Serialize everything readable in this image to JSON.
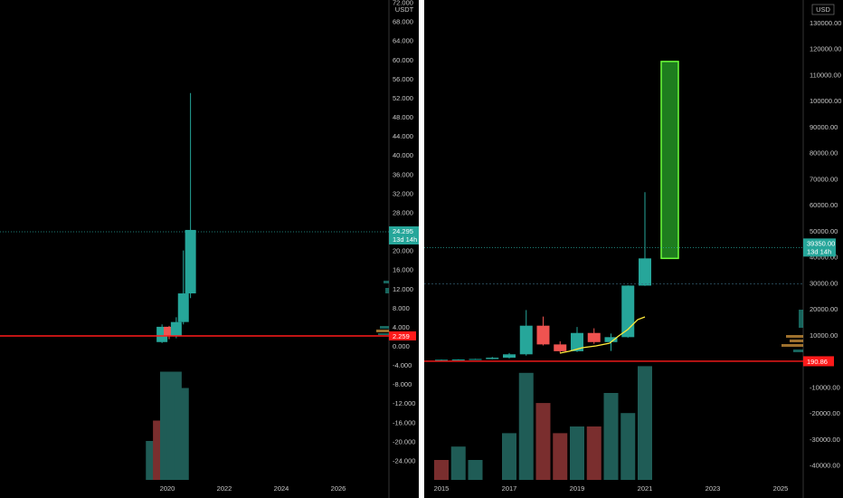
{
  "left_chart": {
    "currency": "USDT",
    "y_ticks": [
      "77.000",
      "72.000",
      "68.000",
      "64.000",
      "60.000",
      "56.000",
      "52.000",
      "48.000",
      "44.000",
      "40.000",
      "36.000",
      "32.000",
      "28.000",
      "24.000",
      "20.000",
      "16.000",
      "12.000",
      "8.000",
      "4.000",
      "0.000",
      "-4.000",
      "-8.000",
      "-12.000",
      "-16.000",
      "-20.000",
      "-24.000"
    ],
    "x_ticks": [
      "2020",
      "2022",
      "2024",
      "2026"
    ],
    "last_price": "24.295",
    "countdown": "13d 14h",
    "support_price": "2.259",
    "colors": {
      "up": "#26a69a",
      "down": "#ef5350",
      "line": "#ff1a1a"
    }
  },
  "right_chart": {
    "currency": "USD",
    "y_ticks": [
      "130000.00",
      "120000.00",
      "110000.00",
      "100000.00",
      "90000.00",
      "80000.00",
      "70000.00",
      "60000.00",
      "50000.00",
      "40000.00",
      "30000.00",
      "20000.00",
      "10000.00",
      "0.00",
      "-10000.00",
      "-20000.00",
      "-30000.00",
      "-40000.00"
    ],
    "x_ticks": [
      "2015",
      "2017",
      "2019",
      "2021",
      "2023",
      "2025"
    ],
    "last_price": "39350.00",
    "countdown": "13d 14h",
    "support_price": "190.86",
    "colors": {
      "up": "#26a69a",
      "down": "#ef5350",
      "projection": "#4caf50",
      "trend": "#ffeb3b"
    }
  },
  "chart_data": [
    {
      "type": "candlestick",
      "title": "",
      "ylabel": "USDT",
      "ylim": [
        -26,
        78
      ],
      "candles": [
        {
          "x": "2019.75",
          "open": 0.8,
          "high": 4.5,
          "low": 0.6,
          "close": 4.0
        },
        {
          "x": "2020.0",
          "open": 4.0,
          "high": 4.2,
          "low": 1.4,
          "close": 2.0
        },
        {
          "x": "2020.25",
          "open": 2.0,
          "high": 6.0,
          "low": 1.6,
          "close": 5.0
        },
        {
          "x": "2020.5",
          "open": 5.0,
          "high": 20.0,
          "low": 4.5,
          "close": 11.0
        },
        {
          "x": "2020.75",
          "open": 11.0,
          "high": 53.0,
          "low": 10.0,
          "close": 24.3
        }
      ],
      "volume": [
        {
          "x": "2019.5",
          "value": 20,
          "dir": "up"
        },
        {
          "x": "2019.75",
          "value": 15,
          "dir": "down"
        },
        {
          "x": "2020.0",
          "value": 3,
          "dir": "up"
        },
        {
          "x": "2020.25",
          "value": 3,
          "dir": "up"
        },
        {
          "x": "2020.5",
          "value": 7,
          "dir": "up"
        }
      ],
      "horizontal_line": 2.259
    },
    {
      "type": "candlestick",
      "title": "",
      "ylabel": "USD",
      "ylim": [
        -42000,
        134000
      ],
      "candles": [
        {
          "x": "2015",
          "open": 300,
          "high": 500,
          "low": 200,
          "close": 400
        },
        {
          "x": "2015.5",
          "open": 400,
          "high": 600,
          "low": 300,
          "close": 500
        },
        {
          "x": "2016",
          "open": 500,
          "high": 800,
          "low": 400,
          "close": 700
        },
        {
          "x": "2016.5",
          "open": 700,
          "high": 1500,
          "low": 600,
          "close": 1200
        },
        {
          "x": "2017",
          "open": 1200,
          "high": 3000,
          "low": 900,
          "close": 2500
        },
        {
          "x": "2017.5",
          "open": 2500,
          "high": 19500,
          "low": 2000,
          "close": 13500
        },
        {
          "x": "2018",
          "open": 13500,
          "high": 17000,
          "low": 5900,
          "close": 6300
        },
        {
          "x": "2018.5",
          "open": 6300,
          "high": 7500,
          "low": 3100,
          "close": 3700
        },
        {
          "x": "2019",
          "open": 3700,
          "high": 13000,
          "low": 3400,
          "close": 10700
        },
        {
          "x": "2019.5",
          "open": 10700,
          "high": 12500,
          "low": 6500,
          "close": 7200
        },
        {
          "x": "2020",
          "open": 7200,
          "high": 10500,
          "low": 3800,
          "close": 9100
        },
        {
          "x": "2020.5",
          "open": 9100,
          "high": 29000,
          "low": 8900,
          "close": 28900
        },
        {
          "x": "2021",
          "open": 28900,
          "high": 64800,
          "low": 28800,
          "close": 39350
        }
      ],
      "projection_box": {
        "x_start": "2021.5",
        "x_end": "2022",
        "low": 39350,
        "high": 115000
      },
      "volume": [
        {
          "x": "2015",
          "value": 30,
          "dir": "down"
        },
        {
          "x": "2015.5",
          "value": 26,
          "dir": "up"
        },
        {
          "x": "2016",
          "value": 30,
          "dir": "up"
        },
        {
          "x": "2016.5",
          "value": 36,
          "dir": "up"
        },
        {
          "x": "2017",
          "value": 22,
          "dir": "up"
        },
        {
          "x": "2017.5",
          "value": 4,
          "dir": "up"
        },
        {
          "x": "2018",
          "value": 13,
          "dir": "down"
        },
        {
          "x": "2018.5",
          "value": 22,
          "dir": "down"
        },
        {
          "x": "2019",
          "value": 20,
          "dir": "up"
        },
        {
          "x": "2019.5",
          "value": 20,
          "dir": "down"
        },
        {
          "x": "2020",
          "value": 10,
          "dir": "up"
        },
        {
          "x": "2020.5",
          "value": 16,
          "dir": "up"
        },
        {
          "x": "2021",
          "value": 2,
          "dir": "up"
        }
      ],
      "horizontal_line": 190.86
    }
  ]
}
